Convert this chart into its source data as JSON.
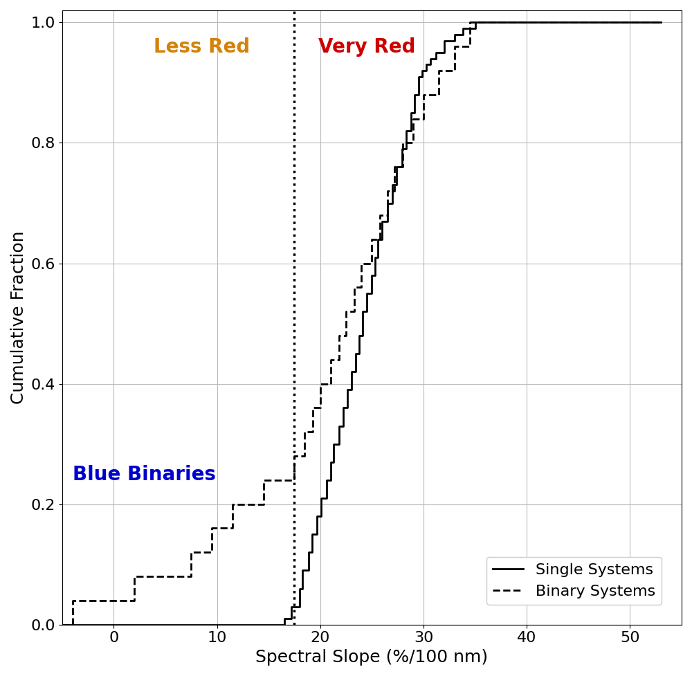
{
  "title": "",
  "xlabel": "Spectral Slope (%/100 nm)",
  "ylabel": "Cumulative Fraction",
  "xlim": [
    -5,
    55
  ],
  "ylim": [
    0.0,
    1.02
  ],
  "xticks": [
    0,
    10,
    20,
    30,
    40,
    50
  ],
  "yticks": [
    0.0,
    0.2,
    0.4,
    0.6,
    0.8,
    1.0
  ],
  "dotted_line_x": 17.5,
  "less_red_label": "Less Red",
  "very_red_label": "Very Red",
  "blue_binaries_label": "Blue Binaries",
  "less_red_color": "#D4820A",
  "very_red_color": "#CC0000",
  "blue_binaries_color": "#0000CC",
  "legend_labels": [
    "Single Systems",
    "Binary Systems"
  ],
  "single_x": [
    -5.0,
    16.5,
    16.5,
    17.2,
    17.2,
    18.0,
    18.3,
    18.9,
    19.2,
    19.7,
    20.1,
    20.6,
    21.0,
    21.3,
    21.8,
    22.2,
    22.6,
    23.0,
    23.4,
    23.8,
    24.1,
    24.5,
    25.0,
    25.3,
    25.6,
    26.0,
    26.5,
    27.0,
    27.4,
    27.9,
    28.3,
    28.8,
    29.1,
    29.5,
    29.9,
    30.3,
    30.7,
    31.2,
    32.0,
    33.0,
    33.8,
    35.0,
    36.5,
    37.5,
    38.5,
    39.5,
    41.0,
    42.5,
    44.5,
    46.5,
    53.0
  ],
  "single_y": [
    0.0,
    0.0,
    0.01,
    0.01,
    0.03,
    0.06,
    0.09,
    0.12,
    0.15,
    0.18,
    0.21,
    0.24,
    0.27,
    0.3,
    0.33,
    0.36,
    0.39,
    0.42,
    0.45,
    0.48,
    0.52,
    0.55,
    0.58,
    0.61,
    0.64,
    0.67,
    0.7,
    0.73,
    0.76,
    0.79,
    0.82,
    0.85,
    0.88,
    0.91,
    0.92,
    0.93,
    0.94,
    0.95,
    0.97,
    0.98,
    0.99,
    1.0,
    1.0,
    1.0,
    1.0,
    1.0,
    1.0,
    1.0,
    1.0,
    1.0,
    1.0
  ],
  "binary_x": [
    -5.0,
    -4.0,
    -4.0,
    2.0,
    2.0,
    7.5,
    7.5,
    9.5,
    9.5,
    11.5,
    11.5,
    14.5,
    14.5,
    17.5,
    17.5,
    18.5,
    18.5,
    19.3,
    19.3,
    20.0,
    20.0,
    21.0,
    21.0,
    21.8,
    21.8,
    22.5,
    22.5,
    23.3,
    23.3,
    24.0,
    24.0,
    25.0,
    25.0,
    25.8,
    25.8,
    26.5,
    26.5,
    27.2,
    27.2,
    28.0,
    28.0,
    29.0,
    29.0,
    30.0,
    30.0,
    31.5,
    31.5,
    33.0,
    33.0,
    34.5,
    34.5,
    36.5,
    36.5,
    38.0,
    38.0,
    39.5,
    39.5,
    40.5,
    40.5,
    53.0
  ],
  "binary_y": [
    0.0,
    0.0,
    0.04,
    0.04,
    0.08,
    0.08,
    0.12,
    0.12,
    0.16,
    0.16,
    0.2,
    0.2,
    0.24,
    0.24,
    0.28,
    0.28,
    0.32,
    0.32,
    0.36,
    0.36,
    0.4,
    0.4,
    0.44,
    0.44,
    0.48,
    0.48,
    0.52,
    0.52,
    0.56,
    0.56,
    0.6,
    0.6,
    0.64,
    0.64,
    0.68,
    0.68,
    0.72,
    0.72,
    0.76,
    0.76,
    0.8,
    0.8,
    0.84,
    0.84,
    0.88,
    0.88,
    0.92,
    0.92,
    0.96,
    0.96,
    1.0,
    1.0,
    1.0,
    1.0,
    1.0,
    1.0,
    1.0,
    1.0,
    1.0,
    1.0
  ],
  "line_color": "#000000",
  "line_width": 2.0,
  "grid_color": "#bbbbbb",
  "background_color": "#ffffff",
  "tick_fontsize": 16,
  "label_fontsize": 18,
  "annotation_fontsize": 20
}
